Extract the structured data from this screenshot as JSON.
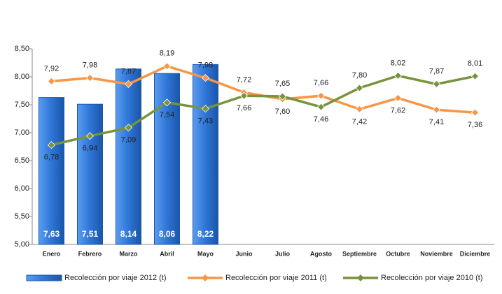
{
  "chart_data": {
    "type": "bar",
    "categories": [
      "Enero",
      "Febrero",
      "Marzo",
      "Abril",
      "Mayo",
      "Junio",
      "Julio",
      "Agosto",
      "Septiembre",
      "Octubre",
      "Noviembre",
      "Diciembre"
    ],
    "series": [
      {
        "name": "Recolección por viaje 2012 (t)",
        "type": "bar",
        "color": "#2e75d6",
        "values": [
          7.63,
          7.51,
          8.14,
          8.06,
          8.22,
          null,
          null,
          null,
          null,
          null,
          null,
          null
        ],
        "value_labels": [
          "7,63",
          "7,51",
          "8,14",
          "8,06",
          "8,22",
          null,
          null,
          null,
          null,
          null,
          null,
          null
        ]
      },
      {
        "name": "Recolección por viaje 2011 (t)",
        "type": "line",
        "color": "#f79646",
        "values": [
          7.92,
          7.98,
          7.87,
          8.19,
          7.98,
          7.72,
          7.6,
          7.66,
          7.42,
          7.62,
          7.41,
          7.36
        ],
        "value_labels": [
          "7,92",
          "7,98",
          "7,87",
          "8,19",
          "7,98",
          "7,72",
          "7,60",
          "7,66",
          "7,42",
          "7,62",
          "7,41",
          "7,36"
        ]
      },
      {
        "name": "Recolección por viaje 2010 (t)",
        "type": "line",
        "color": "#77933c",
        "values": [
          6.78,
          6.94,
          7.09,
          7.54,
          7.43,
          7.66,
          7.65,
          7.46,
          7.8,
          8.02,
          7.87,
          8.01
        ],
        "value_labels": [
          "6,78",
          "6,94",
          "7,09",
          "7,54",
          "7,43",
          "7,66",
          "7,65",
          "7,46",
          "7,80",
          "8,02",
          "7,87",
          "8,01"
        ]
      }
    ],
    "ylim": [
      5,
      8.5
    ],
    "yticks": [
      {
        "value": 5,
        "label": "5,00"
      },
      {
        "value": 5.5,
        "label": "5,50"
      },
      {
        "value": 6,
        "label": "6,00"
      },
      {
        "value": 6.5,
        "label": "6,50"
      },
      {
        "value": 7,
        "label": "7,00"
      },
      {
        "value": 7.5,
        "label": "7,50"
      },
      {
        "value": 8,
        "label": "8,00"
      },
      {
        "value": 8.5,
        "label": "8,50"
      }
    ],
    "grid": false,
    "legend": "bottom"
  }
}
